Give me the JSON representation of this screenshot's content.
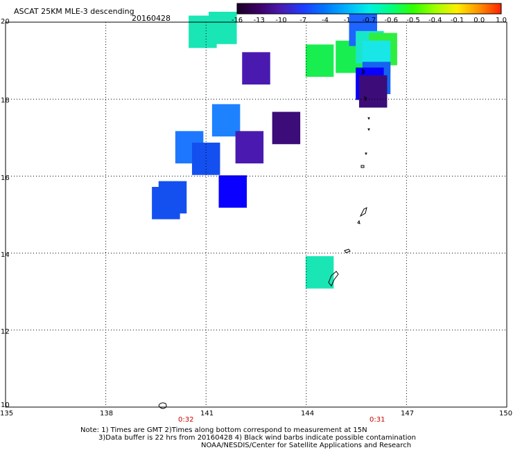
{
  "title": "ASCAT 25KM MLE-3 descending",
  "date": "20160428",
  "colorbar": {
    "labels": [
      "-16",
      "-13",
      "-10",
      "-7",
      "-4",
      "-1",
      "-0.7",
      "-0.6",
      "-0.5",
      "-0.4",
      "-0.1",
      "0.0",
      "1.0"
    ],
    "colors": [
      "#1a0026",
      "#3c0066",
      "#4a1ab0",
      "#1e3cff",
      "#0078ff",
      "#00b4ff",
      "#00f0e6",
      "#00ff80",
      "#30ff00",
      "#a0ff00",
      "#ffee00",
      "#ff9000",
      "#ff2000"
    ]
  },
  "axes": {
    "lat_labels": [
      "20",
      "18",
      "16",
      "14",
      "12",
      "10"
    ],
    "lon_labels": [
      "135",
      "138",
      "141",
      "144",
      "147",
      "150"
    ]
  },
  "time_labels": [
    "0:32",
    "0:31"
  ],
  "notes": [
    "Note: 1) Times are GMT 2)Times along bottom correspond to measurement at 15N",
    "3)Data buffer is 22 hrs from 20160428 4) Black wind barbs indicate possible contamination",
    "NOAA/NESDIS/Center for Satellite Applications and Research"
  ],
  "cells": [
    {
      "lon": 140.9,
      "lat": 19.75,
      "color": "#19e6b4"
    },
    {
      "lon": 141.5,
      "lat": 19.85,
      "color": "#19e6b4"
    },
    {
      "lon": 142.5,
      "lat": 18.8,
      "color": "#4a1ab0"
    },
    {
      "lon": 144.4,
      "lat": 19.0,
      "color": "#19ee50"
    },
    {
      "lon": 145.3,
      "lat": 19.1,
      "color": "#19ee50"
    },
    {
      "lon": 145.7,
      "lat": 19.8,
      "color": "#1e64ff"
    },
    {
      "lon": 145.9,
      "lat": 19.35,
      "color": "#19e6c8"
    },
    {
      "lon": 146.3,
      "lat": 19.3,
      "color": "#30ee40"
    },
    {
      "lon": 146.1,
      "lat": 19.1,
      "color": "#19e6e6"
    },
    {
      "lon": 146.1,
      "lat": 18.55,
      "color": "#1464f0"
    },
    {
      "lon": 145.9,
      "lat": 18.4,
      "color": "#0a00ff"
    },
    {
      "lon": 146.0,
      "lat": 18.2,
      "color": "#3c0c78"
    },
    {
      "lon": 141.6,
      "lat": 17.45,
      "color": "#1e82ff"
    },
    {
      "lon": 143.4,
      "lat": 17.25,
      "color": "#3c0c78"
    },
    {
      "lon": 140.5,
      "lat": 16.75,
      "color": "#1e78ff"
    },
    {
      "lon": 142.3,
      "lat": 16.75,
      "color": "#4a1ab0"
    },
    {
      "lon": 141.0,
      "lat": 16.45,
      "color": "#1450f0"
    },
    {
      "lon": 141.8,
      "lat": 15.6,
      "color": "#0a00ff"
    },
    {
      "lon": 140.0,
      "lat": 15.45,
      "color": "#1450f0"
    },
    {
      "lon": 139.8,
      "lat": 15.3,
      "color": "#1450f0"
    },
    {
      "lon": 144.4,
      "lat": 13.5,
      "color": "#19e6b4"
    }
  ]
}
